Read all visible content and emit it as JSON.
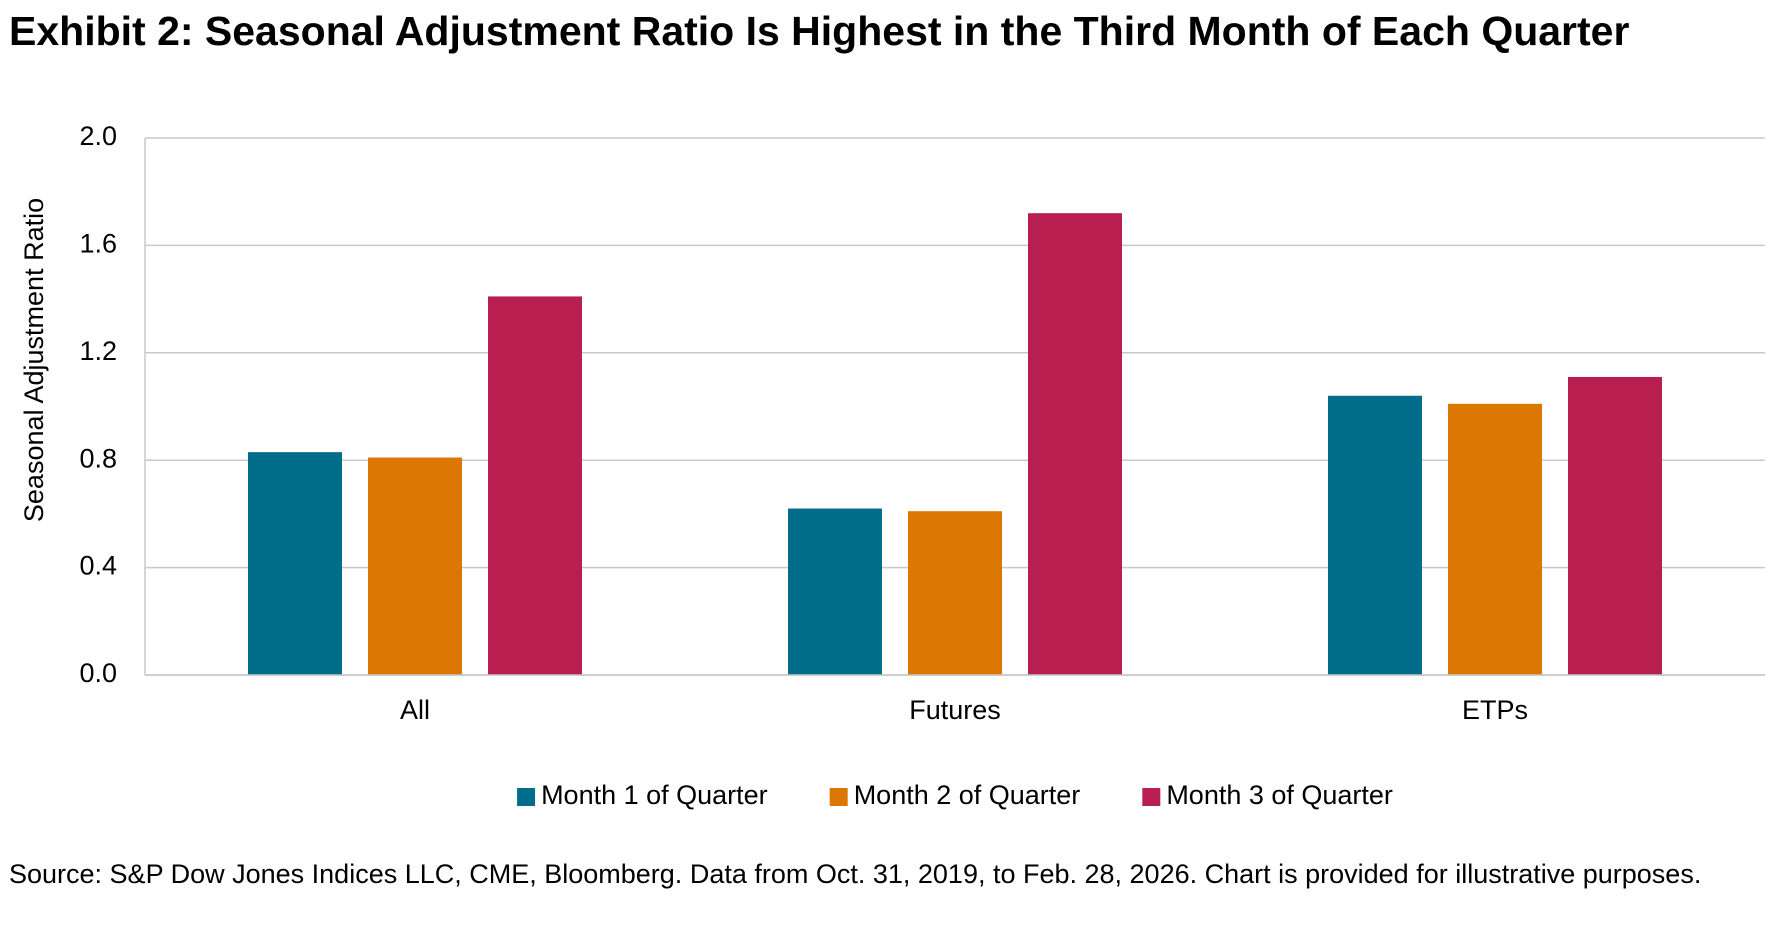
{
  "chart_data": {
    "type": "bar",
    "title": "Exhibit 2: Seasonal Adjustment Ratio Is Highest in the Third Month of Each Quarter",
    "y_label": "Seasonal Adjustment Ratio",
    "categories": [
      "All",
      "Futures",
      "ETPs"
    ],
    "series": [
      {
        "name": "Month 1 of Quarter",
        "color": "#006e8a",
        "values": [
          0.83,
          0.62,
          1.04
        ]
      },
      {
        "name": "Month 2 of Quarter",
        "color": "#dc7703",
        "values": [
          0.81,
          0.61,
          1.01
        ]
      },
      {
        "name": "Month 3 of Quarter",
        "color": "#b81f50",
        "values": [
          1.41,
          1.72,
          1.11
        ]
      }
    ],
    "ylim": [
      0,
      2
    ],
    "yticks": [
      {
        "value": 0,
        "label": "0.0"
      },
      {
        "value": 0.4,
        "label": "0.4"
      },
      {
        "value": 0.8,
        "label": "0.8"
      },
      {
        "value": 1.2,
        "label": "1.2"
      },
      {
        "value": 1.6,
        "label": "1.6"
      },
      {
        "value": 2,
        "label": "2.0"
      }
    ],
    "grid": true,
    "legend": "bottom",
    "source": "Source: S&P Dow Jones Indices LLC, CME, Bloomberg. Data from Oct. 31, 2019, to Feb. 28, 2026. Chart is provided for illustrative purposes."
  }
}
